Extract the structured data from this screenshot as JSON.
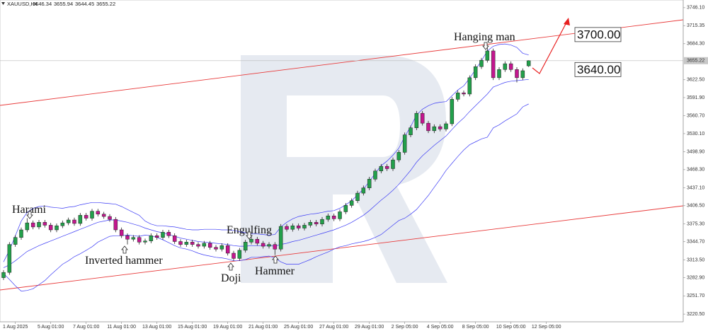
{
  "chart_data": {
    "type": "candlestick",
    "symbol": "XAUUSD,H4",
    "up_color": "#22a04b",
    "down_color": "#c4168f",
    "wick_color": "#222",
    "band_color": "#3b3bf5",
    "grid": false,
    "open": [
      3283,
      3292,
      3340,
      3352,
      3365,
      3377,
      3370,
      3378,
      3373,
      3365,
      3372,
      3377,
      3382,
      3376,
      3390,
      3385,
      3397,
      3392,
      3388,
      3383,
      3365,
      3355,
      3349,
      3352,
      3344,
      3346,
      3355,
      3352,
      3361,
      3355,
      3345,
      3340,
      3344,
      3340,
      3337,
      3342,
      3335,
      3332,
      3338,
      3325,
      3316,
      3330,
      3344,
      3349,
      3342,
      3337,
      3340,
      3332,
      3371,
      3366,
      3372,
      3368,
      3373,
      3378,
      3375,
      3383,
      3389,
      3384,
      3396,
      3407,
      3415,
      3428,
      3437,
      3452,
      3466,
      3474,
      3470,
      3485,
      3498,
      3528,
      3540,
      3565,
      3548,
      3535,
      3542,
      3538,
      3547,
      3589,
      3600,
      3598,
      3626,
      3645,
      3656,
      3672,
      3626,
      3640,
      3650,
      3640,
      3626,
      3646.34
    ],
    "high": [
      3296,
      3344,
      3356,
      3369,
      3385,
      3381,
      3382,
      3382,
      3377,
      3376,
      3381,
      3386,
      3386,
      3394,
      3394,
      3401,
      3401,
      3396,
      3392,
      3387,
      3369,
      3359,
      3356,
      3356,
      3350,
      3359,
      3359,
      3365,
      3365,
      3359,
      3349,
      3348,
      3348,
      3344,
      3346,
      3346,
      3339,
      3342,
      3342,
      3329,
      3334,
      3348,
      3356,
      3353,
      3346,
      3344,
      3344,
      3375,
      3375,
      3376,
      3376,
      3377,
      3382,
      3382,
      3387,
      3393,
      3393,
      3400,
      3411,
      3419,
      3432,
      3441,
      3456,
      3470,
      3478,
      3478,
      3489,
      3502,
      3532,
      3544,
      3569,
      3569,
      3552,
      3546,
      3546,
      3551,
      3593,
      3604,
      3604,
      3630,
      3649,
      3660,
      3682,
      3676,
      3644,
      3654,
      3654,
      3644,
      3642,
      3655.94
    ],
    "low": [
      3279,
      3288,
      3336,
      3348,
      3361,
      3366,
      3366,
      3369,
      3361,
      3361,
      3368,
      3373,
      3372,
      3372,
      3381,
      3381,
      3388,
      3384,
      3379,
      3361,
      3351,
      3340,
      3345,
      3340,
      3340,
      3342,
      3348,
      3348,
      3351,
      3341,
      3336,
      3336,
      3336,
      3333,
      3333,
      3331,
      3328,
      3328,
      3321,
      3312,
      3312,
      3326,
      3340,
      3338,
      3333,
      3333,
      3322,
      3328,
      3362,
      3362,
      3364,
      3364,
      3369,
      3371,
      3371,
      3379,
      3380,
      3380,
      3392,
      3403,
      3411,
      3424,
      3433,
      3448,
      3462,
      3466,
      3466,
      3481,
      3494,
      3524,
      3536,
      3544,
      3531,
      3531,
      3534,
      3534,
      3543,
      3585,
      3594,
      3594,
      3622,
      3641,
      3652,
      3622,
      3622,
      3636,
      3636,
      3618,
      3622,
      3644.45
    ],
    "close": [
      3292,
      3340,
      3352,
      3365,
      3377,
      3370,
      3378,
      3373,
      3365,
      3372,
      3377,
      3382,
      3376,
      3390,
      3385,
      3397,
      3392,
      3388,
      3383,
      3365,
      3355,
      3349,
      3352,
      3344,
      3346,
      3355,
      3352,
      3361,
      3355,
      3345,
      3340,
      3344,
      3340,
      3337,
      3342,
      3335,
      3332,
      3338,
      3325,
      3316,
      3330,
      3344,
      3349,
      3342,
      3337,
      3340,
      3332,
      3371,
      3366,
      3372,
      3368,
      3373,
      3378,
      3375,
      3383,
      3389,
      3384,
      3396,
      3407,
      3415,
      3428,
      3437,
      3452,
      3466,
      3474,
      3470,
      3485,
      3498,
      3528,
      3540,
      3565,
      3548,
      3535,
      3542,
      3538,
      3547,
      3589,
      3600,
      3598,
      3626,
      3645,
      3656,
      3672,
      3626,
      3640,
      3650,
      3640,
      3626,
      3638,
      3655.22
    ],
    "upper_band": [
      3310,
      3330,
      3355,
      3380,
      3395,
      3402,
      3405,
      3406,
      3404,
      3403,
      3402,
      3404,
      3405,
      3408,
      3410,
      3412,
      3412,
      3411,
      3410,
      3409,
      3405,
      3400,
      3395,
      3390,
      3380,
      3375,
      3372,
      3372,
      3371,
      3370,
      3368,
      3366,
      3365,
      3365,
      3366,
      3366,
      3366,
      3365,
      3365,
      3364,
      3362,
      3360,
      3358,
      3358,
      3357,
      3356,
      3357,
      3370,
      3378,
      3384,
      3388,
      3390,
      3392,
      3393,
      3395,
      3397,
      3398,
      3402,
      3408,
      3415,
      3425,
      3435,
      3448,
      3462,
      3475,
      3483,
      3493,
      3505,
      3525,
      3542,
      3562,
      3572,
      3578,
      3582,
      3584,
      3585,
      3595,
      3605,
      3612,
      3625,
      3640,
      3655,
      3672,
      3680,
      3683,
      3684,
      3682,
      3678,
      3668,
      3665
    ],
    "middle_band": [
      3300,
      3305,
      3312,
      3320,
      3328,
      3333,
      3338,
      3342,
      3346,
      3350,
      3354,
      3358,
      3362,
      3366,
      3370,
      3374,
      3378,
      3380,
      3382,
      3382,
      3380,
      3378,
      3375,
      3372,
      3368,
      3365,
      3362,
      3360,
      3357,
      3354,
      3351,
      3349,
      3347,
      3345,
      3344,
      3343,
      3342,
      3341,
      3340,
      3338,
      3337,
      3337,
      3338,
      3338,
      3338,
      3338,
      3337,
      3340,
      3342,
      3345,
      3347,
      3350,
      3353,
      3356,
      3359,
      3362,
      3365,
      3369,
      3373,
      3378,
      3384,
      3390,
      3398,
      3407,
      3416,
      3424,
      3433,
      3443,
      3455,
      3467,
      3481,
      3492,
      3501,
      3510,
      3518,
      3526,
      3537,
      3548,
      3557,
      3568,
      3578,
      3588,
      3598,
      3610,
      3614,
      3618,
      3620,
      3621,
      3622,
      3623
    ],
    "lower_band": [
      3290,
      3280,
      3269,
      3260,
      3261,
      3264,
      3271,
      3278,
      3288,
      3297,
      3306,
      3312,
      3319,
      3324,
      3330,
      3336,
      3344,
      3349,
      3354,
      3355,
      3355,
      3356,
      3355,
      3354,
      3356,
      3355,
      3352,
      3348,
      3343,
      3338,
      3334,
      3332,
      3329,
      3325,
      3322,
      3320,
      3318,
      3317,
      3315,
      3312,
      3312,
      3314,
      3318,
      3318,
      3319,
      3320,
      3317,
      3310,
      3306,
      3306,
      3306,
      3310,
      3314,
      3319,
      3323,
      3327,
      3332,
      3336,
      3338,
      3341,
      3343,
      3345,
      3348,
      3352,
      3357,
      3365,
      3373,
      3381,
      3385,
      3392,
      3400,
      3412,
      3424,
      3438,
      3452,
      3467,
      3479,
      3491,
      3502,
      3511,
      3516,
      3521,
      3524,
      3540,
      3545,
      3552,
      3558,
      3564,
      3576,
      3581
    ],
    "xlim": [
      -0.6,
      115.2
    ],
    "xticks": [
      {
        "value": 2,
        "label": "1 Aug 2025"
      },
      {
        "value": 8,
        "label": "5 Aug 01:00"
      },
      {
        "value": 14,
        "label": "7 Aug 01:00"
      },
      {
        "value": 20,
        "label": "11 Aug 01:00"
      },
      {
        "value": 26,
        "label": "13 Aug 01:00"
      },
      {
        "value": 32,
        "label": "15 Aug 01:00"
      },
      {
        "value": 38,
        "label": "19 Aug 01:00"
      },
      {
        "value": 44,
        "label": "21 Aug 01:00"
      },
      {
        "value": 50,
        "label": "25 Aug 01:00"
      },
      {
        "value": 56,
        "label": "27 Aug 01:00"
      },
      {
        "value": 62,
        "label": "29 Aug 01:00"
      },
      {
        "value": 68,
        "label": "2 Sep 05:00"
      },
      {
        "value": 74,
        "label": "4 Sep 05:00"
      },
      {
        "value": 80,
        "label": "8 Sep 05:00"
      },
      {
        "value": 86,
        "label": "10 Sep 05:00"
      },
      {
        "value": 92,
        "label": "12 Sep 05:00"
      }
    ],
    "ylim": [
      3207.3,
      3759.3
    ],
    "yticks": [
      {
        "value": 3746.1,
        "label": "3746.10"
      },
      {
        "value": 3715.35,
        "label": "3715.35"
      },
      {
        "value": 3684.3,
        "label": "3684.30"
      },
      {
        "value": 3622.5,
        "label": "3622.50"
      },
      {
        "value": 3591.9,
        "label": "3591.90"
      },
      {
        "value": 3560.7,
        "label": "3560.70"
      },
      {
        "value": 3530.1,
        "label": "3530.10"
      },
      {
        "value": 3498.9,
        "label": "3498.90"
      },
      {
        "value": 3468.3,
        "label": "3468.30"
      },
      {
        "value": 3437.1,
        "label": "3437.10"
      },
      {
        "value": 3406.5,
        "label": "3406.50"
      },
      {
        "value": 3375.3,
        "label": "3375.30"
      },
      {
        "value": 3344.7,
        "label": "3344.70"
      },
      {
        "value": 3313.5,
        "label": "3313.50"
      },
      {
        "value": 3282.9,
        "label": "3282.90"
      },
      {
        "value": 3251.7,
        "label": "3251.70"
      },
      {
        "value": 3220.5,
        "label": "3220.50"
      }
    ],
    "annotations": [
      "Harami",
      "Inverted hammer",
      "Doji",
      "Engulfing",
      "Hammer",
      "Hanging man"
    ],
    "targets": [
      {
        "value": 3700,
        "label": "3700.00"
      },
      {
        "value": 3640,
        "label": "3640.00"
      }
    ]
  }
}
